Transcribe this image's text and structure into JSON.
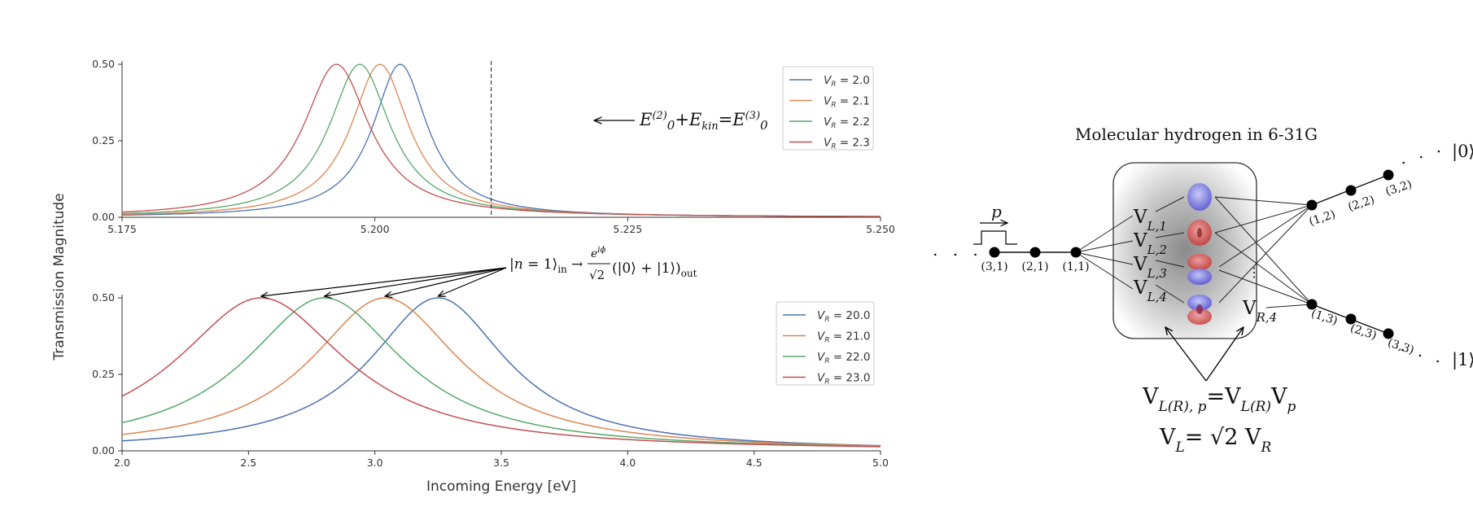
{
  "chart_data": [
    {
      "type": "line",
      "xlim": [
        5.175,
        5.25
      ],
      "ylim": [
        0,
        0.5
      ],
      "x_ticks": [
        "5.175",
        "5.200",
        "5.225",
        "5.250"
      ],
      "y_ticks": [
        "0.00",
        "0.25",
        "0.50"
      ],
      "legend_position": "top-right",
      "series": [
        {
          "name": "V_R = 2.0",
          "color": "#4c72b0",
          "peak_x": 5.2025,
          "peak_y": 0.5,
          "half_width": 0.0033
        },
        {
          "name": "V_R = 2.1",
          "color": "#dd8452",
          "peak_x": 5.2005,
          "peak_y": 0.5,
          "half_width": 0.0035
        },
        {
          "name": "V_R = 2.2",
          "color": "#55a868",
          "peak_x": 5.1985,
          "peak_y": 0.5,
          "half_width": 0.0037
        },
        {
          "name": "V_R = 2.3",
          "color": "#c44e52",
          "peak_x": 5.1962,
          "peak_y": 0.5,
          "half_width": 0.004
        }
      ],
      "vline_x": 5.2115,
      "annotation": "E(2)0+Ekin=E(3)0"
    },
    {
      "type": "line",
      "xlim": [
        2.0,
        5.0
      ],
      "ylim": [
        0,
        0.5
      ],
      "x_ticks": [
        "2.0",
        "2.5",
        "3.0",
        "3.5",
        "4.0",
        "4.5",
        "5.0"
      ],
      "y_ticks": [
        "0.00",
        "0.25",
        "0.50"
      ],
      "xlabel": "Incoming Energy [eV]",
      "legend_position": "top-right",
      "series": [
        {
          "name": "V_R = 20.0",
          "color": "#4c72b0",
          "peak_x": 3.25,
          "peak_y": 0.5,
          "half_width": 0.33
        },
        {
          "name": "V_R = 21.0",
          "color": "#dd8452",
          "peak_x": 3.04,
          "peak_y": 0.5,
          "half_width": 0.36
        },
        {
          "name": "V_R = 22.0",
          "color": "#55a868",
          "peak_x": 2.8,
          "peak_y": 0.5,
          "half_width": 0.38
        },
        {
          "name": "V_R = 23.0",
          "color": "#c44e52",
          "peak_x": 2.55,
          "peak_y": 0.5,
          "half_width": 0.41
        }
      ]
    }
  ],
  "shared_ylabel": "Transmission Magnitude",
  "legend_top": [
    {
      "v": "V",
      "sub": "R",
      "eq": " = 2.0"
    },
    {
      "v": "V",
      "sub": "R",
      "eq": " = 2.1"
    },
    {
      "v": "V",
      "sub": "R",
      "eq": " = 2.2"
    },
    {
      "v": "V",
      "sub": "R",
      "eq": " = 2.3"
    }
  ],
  "legend_bottom": [
    {
      "v": "V",
      "sub": "R",
      "eq": " = 20.0"
    },
    {
      "v": "V",
      "sub": "R",
      "eq": " = 21.0"
    },
    {
      "v": "V",
      "sub": "R",
      "eq": " = 22.0"
    },
    {
      "v": "V",
      "sub": "R",
      "eq": " = 23.0"
    }
  ],
  "mid_annotation": "|n = 1⟩in → (e^{iφ}/√2)(|0⟩ + |1⟩)out",
  "diagram": {
    "title": "Molecular hydrogen in 6-31G",
    "pulse_label": "p",
    "left_nodes": [
      "(3,1)",
      "(2,1)",
      "(1,1)"
    ],
    "upper_nodes": [
      "(1,2)",
      "(2,2)",
      "(3,2)"
    ],
    "lower_nodes": [
      "(1,3)",
      "(2,3)",
      "(3,3)"
    ],
    "out_upper": "|0⟩",
    "out_lower": "|1⟩",
    "left_couplings": [
      "V",
      "V",
      "V",
      "V"
    ],
    "left_coupling_subs": [
      "L,1",
      "L,2",
      "L,3",
      "L,4"
    ],
    "right_coupling": "V",
    "right_coupling_sub": "R,4",
    "eq1_lhs": "V",
    "eq1_lhs_sub": "L(R), p",
    "eq1_rhs": "=V",
    "eq1_rhs_sub1": "L(R)",
    "eq1_rhs2": "V",
    "eq1_rhs_sub2": "p",
    "eq2_lhs": "V",
    "eq2_lhs_sub": "L",
    "eq2_mid": "= √2 V",
    "eq2_sub": "R"
  }
}
